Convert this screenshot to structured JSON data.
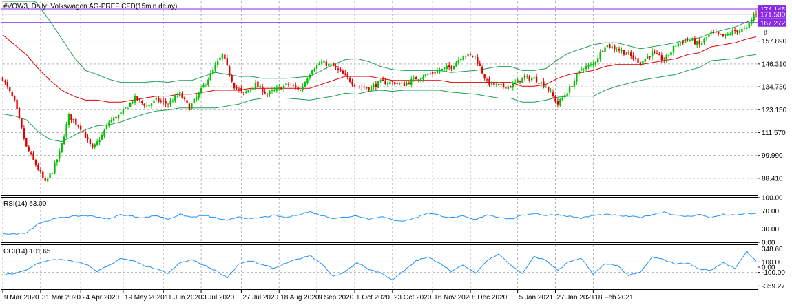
{
  "chart_data": [
    {
      "type": "candlestick",
      "title": "#VOW3, Daily:  Volkswagen AG-PREF CFD(15min delay)",
      "ylim": [
        80,
        178
      ],
      "yticks": [
        "157.890",
        "146.310",
        "134.730",
        "123.150",
        "111.570",
        "99.990",
        "88.410"
      ],
      "ytick_values": [
        157.89,
        146.31,
        134.73,
        123.15,
        111.57,
        99.99,
        88.41
      ],
      "price_labels": [
        "174.145",
        "171.500",
        "167.272"
      ],
      "price_label_values": [
        174.145,
        171.5,
        167.272
      ],
      "price_label_colors": [
        "#8a2be2",
        "#8a2be2",
        "#8a2be2"
      ],
      "horizontal_levels": [
        174.145,
        171.5,
        167.272
      ],
      "bullish_color": "#00c000",
      "bearish_color": "#e00000",
      "ma_color": "#e00000",
      "band_color": "#1e9e55",
      "arrow_up": "⇧",
      "arrow_color": "#d00000",
      "arrow_price": 168.0,
      "path_anchors": [
        [
          0,
          139
        ],
        [
          5,
          127
        ],
        [
          10,
          104
        ],
        [
          15,
          93
        ],
        [
          18,
          86
        ],
        [
          21,
          92
        ],
        [
          24,
          101
        ],
        [
          28,
          120
        ],
        [
          33,
          114
        ],
        [
          38,
          103
        ],
        [
          42,
          110
        ],
        [
          45,
          117
        ],
        [
          50,
          121
        ],
        [
          56,
          129
        ],
        [
          61,
          125
        ],
        [
          65,
          128
        ],
        [
          70,
          126
        ],
        [
          75,
          131
        ],
        [
          79,
          124
        ],
        [
          84,
          133
        ],
        [
          88,
          141
        ],
        [
          93,
          151
        ],
        [
          98,
          135
        ],
        [
          102,
          131
        ],
        [
          107,
          136
        ],
        [
          112,
          131
        ],
        [
          117,
          134
        ],
        [
          121,
          136
        ],
        [
          126,
          133
        ],
        [
          131,
          144
        ],
        [
          135,
          147
        ],
        [
          140,
          145
        ],
        [
          145,
          140
        ],
        [
          150,
          135
        ],
        [
          155,
          134
        ],
        [
          160,
          137
        ],
        [
          165,
          137
        ],
        [
          170,
          136
        ],
        [
          175,
          139
        ],
        [
          180,
          141
        ],
        [
          185,
          143
        ],
        [
          190,
          145
        ],
        [
          195,
          151
        ],
        [
          200,
          150
        ],
        [
          205,
          137
        ],
        [
          210,
          135
        ],
        [
          215,
          135
        ],
        [
          220,
          139
        ],
        [
          225,
          139
        ],
        [
          230,
          135
        ],
        [
          235,
          126
        ],
        [
          240,
          134
        ],
        [
          245,
          144
        ],
        [
          250,
          146
        ],
        [
          255,
          156
        ],
        [
          260,
          154
        ],
        [
          265,
          151
        ],
        [
          270,
          147
        ],
        [
          275,
          152
        ],
        [
          280,
          148
        ],
        [
          285,
          156
        ],
        [
          290,
          159
        ],
        [
          295,
          156
        ],
        [
          300,
          162
        ],
        [
          305,
          160
        ],
        [
          310,
          163
        ],
        [
          315,
          164
        ],
        [
          318,
          171
        ],
        [
          319,
          172
        ]
      ],
      "ma_anchors": [
        [
          0,
          161
        ],
        [
          5,
          156
        ],
        [
          10,
          151
        ],
        [
          15,
          144
        ],
        [
          20,
          138
        ],
        [
          25,
          133
        ],
        [
          30,
          130
        ],
        [
          35,
          128
        ],
        [
          40,
          128
        ],
        [
          45,
          127
        ],
        [
          50,
          127
        ],
        [
          55,
          128
        ],
        [
          60,
          129
        ],
        [
          65,
          130
        ],
        [
          70,
          130
        ],
        [
          75,
          131
        ],
        [
          80,
          131
        ],
        [
          85,
          132
        ],
        [
          90,
          133
        ],
        [
          95,
          133
        ],
        [
          100,
          133
        ],
        [
          105,
          134
        ],
        [
          110,
          134
        ],
        [
          115,
          134
        ],
        [
          120,
          134
        ],
        [
          125,
          134
        ],
        [
          130,
          134
        ],
        [
          135,
          136
        ],
        [
          140,
          138
        ],
        [
          145,
          140
        ],
        [
          150,
          140
        ],
        [
          155,
          140
        ],
        [
          160,
          139
        ],
        [
          165,
          138
        ],
        [
          170,
          138
        ],
        [
          175,
          138
        ],
        [
          180,
          138
        ],
        [
          185,
          138
        ],
        [
          190,
          137
        ],
        [
          195,
          137
        ],
        [
          200,
          137
        ],
        [
          205,
          137
        ],
        [
          210,
          137
        ],
        [
          215,
          137
        ],
        [
          220,
          135
        ],
        [
          225,
          135
        ],
        [
          230,
          136
        ],
        [
          235,
          139
        ],
        [
          240,
          141
        ],
        [
          245,
          142
        ],
        [
          250,
          143
        ],
        [
          255,
          145
        ],
        [
          260,
          146
        ],
        [
          265,
          146
        ],
        [
          270,
          146
        ],
        [
          275,
          147
        ],
        [
          280,
          148
        ],
        [
          285,
          149
        ],
        [
          290,
          151
        ],
        [
          295,
          152
        ],
        [
          300,
          155
        ],
        [
          305,
          156
        ],
        [
          310,
          157
        ],
        [
          315,
          159
        ],
        [
          319,
          160
        ]
      ],
      "band_width_anchors": [
        [
          0,
          40
        ],
        [
          5,
          36
        ],
        [
          10,
          33
        ],
        [
          15,
          32
        ],
        [
          20,
          30
        ],
        [
          25,
          26
        ],
        [
          30,
          20
        ],
        [
          35,
          15
        ],
        [
          40,
          13
        ],
        [
          50,
          10
        ],
        [
          60,
          8
        ],
        [
          70,
          7
        ],
        [
          80,
          7
        ],
        [
          90,
          9
        ],
        [
          100,
          7
        ],
        [
          110,
          5
        ],
        [
          120,
          5
        ],
        [
          130,
          6
        ],
        [
          140,
          8
        ],
        [
          150,
          9
        ],
        [
          160,
          6
        ],
        [
          170,
          5
        ],
        [
          180,
          5
        ],
        [
          190,
          5
        ],
        [
          200,
          6
        ],
        [
          210,
          8
        ],
        [
          220,
          8
        ],
        [
          230,
          8
        ],
        [
          240,
          11
        ],
        [
          250,
          13
        ],
        [
          260,
          11
        ],
        [
          270,
          8
        ],
        [
          280,
          8
        ],
        [
          290,
          8
        ],
        [
          300,
          7
        ],
        [
          310,
          8
        ],
        [
          319,
          9
        ]
      ],
      "x_labels": [
        "9 Mar 2020",
        "31 Mar 2020",
        "24 Apr 2020",
        "19 May 2020",
        "11 Jun 2020",
        "3 Jul 2020",
        "27 Jul 2020",
        "18 Aug 2020",
        "9 Sep 2020",
        "1 Oct 2020",
        "23 Oct 2020",
        "16 Nov 2020",
        "8 Dec 2020",
        "5 Jan 2021",
        "27 Jan 2021",
        "18 Feb 2021"
      ],
      "x_label_bars": [
        0,
        16,
        33,
        51,
        68,
        84,
        101,
        117,
        133,
        149,
        165,
        182,
        198,
        218,
        234,
        250
      ]
    },
    {
      "type": "line",
      "title": "RSI(14) 63.00",
      "ylim": [
        0,
        100
      ],
      "yticks": [
        "100.00",
        "70.00",
        "30.00",
        "0.00"
      ],
      "ytick_values": [
        100,
        70,
        30,
        0
      ],
      "levels": [
        70,
        30
      ],
      "line_color": "#1e90ff",
      "anchors": [
        [
          0,
          20
        ],
        [
          5,
          18
        ],
        [
          10,
          22
        ],
        [
          15,
          42
        ],
        [
          20,
          50
        ],
        [
          25,
          56
        ],
        [
          30,
          58
        ],
        [
          35,
          60
        ],
        [
          40,
          57
        ],
        [
          45,
          52
        ],
        [
          50,
          62
        ],
        [
          55,
          58
        ],
        [
          60,
          55
        ],
        [
          65,
          60
        ],
        [
          70,
          52
        ],
        [
          75,
          62
        ],
        [
          80,
          56
        ],
        [
          85,
          60
        ],
        [
          90,
          55
        ],
        [
          95,
          48
        ],
        [
          100,
          58
        ],
        [
          105,
          52
        ],
        [
          110,
          56
        ],
        [
          115,
          60
        ],
        [
          120,
          55
        ],
        [
          125,
          62
        ],
        [
          130,
          68
        ],
        [
          135,
          60
        ],
        [
          140,
          54
        ],
        [
          145,
          56
        ],
        [
          150,
          60
        ],
        [
          155,
          52
        ],
        [
          160,
          58
        ],
        [
          165,
          50
        ],
        [
          170,
          48
        ],
        [
          175,
          55
        ],
        [
          180,
          66
        ],
        [
          185,
          60
        ],
        [
          190,
          55
        ],
        [
          195,
          58
        ],
        [
          200,
          50
        ],
        [
          205,
          62
        ],
        [
          210,
          56
        ],
        [
          215,
          52
        ],
        [
          220,
          60
        ],
        [
          225,
          65
        ],
        [
          230,
          60
        ],
        [
          235,
          62
        ],
        [
          240,
          58
        ],
        [
          245,
          54
        ],
        [
          250,
          60
        ],
        [
          255,
          62
        ],
        [
          260,
          60
        ],
        [
          265,
          58
        ],
        [
          270,
          56
        ],
        [
          275,
          62
        ],
        [
          280,
          68
        ],
        [
          285,
          60
        ],
        [
          290,
          58
        ],
        [
          295,
          62
        ],
        [
          300,
          55
        ],
        [
          305,
          62
        ],
        [
          310,
          60
        ],
        [
          315,
          65
        ],
        [
          319,
          63
        ]
      ]
    },
    {
      "type": "line",
      "title": "CCI(14) 101.65",
      "ylim": [
        -420,
        420
      ],
      "yticks": [
        "348.60",
        "100.00",
        "0.00",
        "-100.00",
        "-359.27"
      ],
      "ytick_values": [
        348.6,
        100,
        0,
        -100,
        -359.27
      ],
      "levels": [
        100,
        -100
      ],
      "line_color": "#1e90ff",
      "anchors": [
        [
          0,
          -150
        ],
        [
          5,
          -120
        ],
        [
          10,
          -60
        ],
        [
          15,
          80
        ],
        [
          20,
          130
        ],
        [
          25,
          150
        ],
        [
          30,
          100
        ],
        [
          35,
          60
        ],
        [
          40,
          -80
        ],
        [
          45,
          40
        ],
        [
          50,
          160
        ],
        [
          55,
          120
        ],
        [
          60,
          30
        ],
        [
          65,
          -40
        ],
        [
          70,
          -120
        ],
        [
          75,
          80
        ],
        [
          80,
          140
        ],
        [
          85,
          40
        ],
        [
          90,
          -60
        ],
        [
          95,
          -200
        ],
        [
          100,
          60
        ],
        [
          105,
          120
        ],
        [
          110,
          40
        ],
        [
          115,
          -20
        ],
        [
          120,
          80
        ],
        [
          125,
          150
        ],
        [
          130,
          220
        ],
        [
          135,
          60
        ],
        [
          140,
          -180
        ],
        [
          145,
          -90
        ],
        [
          150,
          90
        ],
        [
          155,
          -40
        ],
        [
          160,
          -110
        ],
        [
          165,
          -240
        ],
        [
          170,
          -70
        ],
        [
          175,
          120
        ],
        [
          180,
          190
        ],
        [
          185,
          80
        ],
        [
          190,
          -80
        ],
        [
          195,
          40
        ],
        [
          200,
          -120
        ],
        [
          205,
          120
        ],
        [
          210,
          260
        ],
        [
          215,
          40
        ],
        [
          220,
          -120
        ],
        [
          225,
          200
        ],
        [
          230,
          130
        ],
        [
          235,
          -60
        ],
        [
          240,
          110
        ],
        [
          245,
          160
        ],
        [
          250,
          -130
        ],
        [
          255,
          60
        ],
        [
          260,
          40
        ],
        [
          265,
          -160
        ],
        [
          270,
          -100
        ],
        [
          275,
          190
        ],
        [
          280,
          140
        ],
        [
          285,
          60
        ],
        [
          290,
          80
        ],
        [
          295,
          -40
        ],
        [
          300,
          -60
        ],
        [
          305,
          90
        ],
        [
          310,
          -20
        ],
        [
          315,
          300
        ],
        [
          319,
          102
        ]
      ]
    }
  ]
}
